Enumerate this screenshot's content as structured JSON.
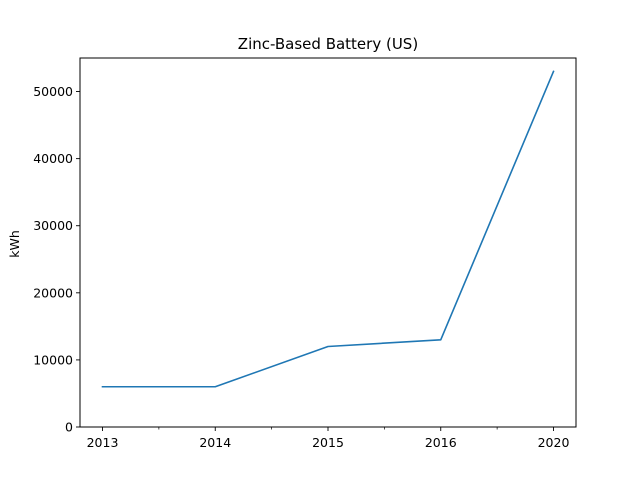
{
  "chart_data": {
    "type": "line",
    "title": "Zinc-Based Battery (US)",
    "xlabel": "",
    "ylabel": "kWh",
    "categories": [
      "2013",
      "2014",
      "2015",
      "2016",
      "2020"
    ],
    "series": [
      {
        "values": [
          6000,
          6000,
          12000,
          13000,
          53000
        ],
        "color": "#1f77b4"
      }
    ],
    "ylim": [
      0,
      55000
    ],
    "yticks": [
      0,
      10000,
      20000,
      30000,
      40000,
      50000
    ],
    "ytick_labels": [
      "0",
      "10000",
      "20000",
      "30000",
      "40000",
      "50000"
    ],
    "grid": false
  }
}
